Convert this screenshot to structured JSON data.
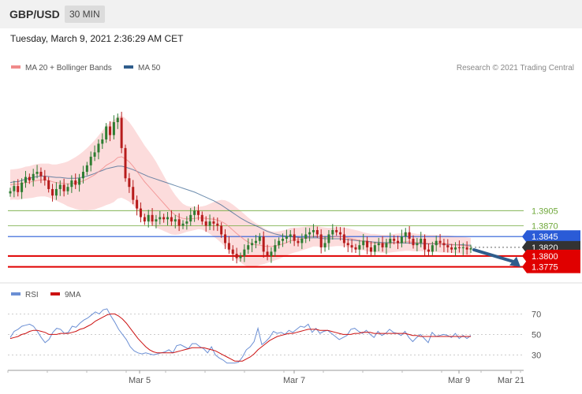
{
  "header": {
    "symbol": "GBP/USD",
    "timeframe": "30 MIN"
  },
  "timestamp": "Tuesday, March 9, 2021 2:36:29 AM CET",
  "legend": {
    "ma20_label": "MA 20 + Bollinger Bands",
    "ma20_color": "#f08a8a",
    "ma50_label": "MA 50",
    "ma50_color": "#2f5d8c"
  },
  "credit": "Research © 2021 Trading Central",
  "rsi_legend": {
    "rsi_label": "RSI",
    "rsi_color": "#6b8fd4",
    "ma_label": "9MA",
    "ma_color": "#cc1111"
  },
  "colors": {
    "bull": "#2e7d32",
    "bear": "#b71c1c",
    "band": "#fcdcdc",
    "resistance": "#6fa83a",
    "pivot": "#2a5bd7",
    "support": "#e00000",
    "current": "#333333",
    "arrow": "#2f5d8c"
  },
  "chart_data": [
    {
      "type": "candlestick",
      "title": "GBP/USD 30 MIN",
      "ylim": [
        1.3745,
        1.4225
      ],
      "x_tick_labels": [
        "Mar 5",
        "Mar 7",
        "Mar 9",
        "Mar 21"
      ],
      "levels": [
        {
          "value": 1.3905,
          "label": "1.3905",
          "kind": "resistance"
        },
        {
          "value": 1.387,
          "label": "1.3870",
          "kind": "resistance"
        },
        {
          "value": 1.3845,
          "label": "1.3845",
          "kind": "pivot"
        },
        {
          "value": 1.382,
          "label": "1.3820",
          "kind": "current"
        },
        {
          "value": 1.38,
          "label": "1.3800",
          "kind": "support"
        },
        {
          "value": 1.3775,
          "label": "1.3775",
          "kind": "support"
        }
      ],
      "forecast_arrow": {
        "from": 1.3818,
        "to": 1.3775
      },
      "closes": [
        1.395,
        1.3962,
        1.3948,
        1.397,
        1.3983,
        1.3975,
        1.399,
        1.3995,
        1.3985,
        1.3975,
        1.3955,
        1.394,
        1.3955,
        1.3965,
        1.395,
        1.396,
        1.3975,
        1.3965,
        1.398,
        1.3995,
        1.401,
        1.403,
        1.404,
        1.406,
        1.407,
        1.41,
        1.408,
        1.411,
        1.412,
        1.405,
        1.398,
        1.396,
        1.393,
        1.391,
        1.389,
        1.388,
        1.3895,
        1.388,
        1.3885,
        1.389,
        1.3885,
        1.389,
        1.388,
        1.3885,
        1.387,
        1.3875,
        1.388,
        1.3895,
        1.3905,
        1.3895,
        1.388,
        1.387,
        1.388,
        1.3875,
        1.387,
        1.385,
        1.383,
        1.3815,
        1.3805,
        1.3795,
        1.38,
        1.3815,
        1.3825,
        1.383,
        1.3835,
        1.3845,
        1.381,
        1.38,
        1.381,
        1.3825,
        1.3835,
        1.384,
        1.3845,
        1.385,
        1.3835,
        1.383,
        1.384,
        1.385,
        1.3855,
        1.386,
        1.385,
        1.382,
        1.383,
        1.385,
        1.386,
        1.3855,
        1.385,
        1.383,
        1.3825,
        1.382,
        1.3815,
        1.3825,
        1.3835,
        1.382,
        1.381,
        1.3825,
        1.383,
        1.382,
        1.383,
        1.384,
        1.3835,
        1.383,
        1.3845,
        1.3855,
        1.384,
        1.3825,
        1.383,
        1.384,
        1.3815,
        1.381,
        1.3825,
        1.3835,
        1.383,
        1.3825,
        1.382,
        1.3815,
        1.382,
        1.3818,
        1.382,
        1.3815,
        1.3818
      ],
      "ma50": [
        1.397,
        1.3972,
        1.3972,
        1.3975,
        1.3978,
        1.398,
        1.3982,
        1.3984,
        1.3985,
        1.3985,
        1.3984,
        1.3983,
        1.3982,
        1.3982,
        1.3981,
        1.398,
        1.398,
        1.398,
        1.3981,
        1.3983,
        1.3985,
        1.3988,
        1.3991,
        1.3995,
        1.3998,
        1.4002,
        1.4004,
        1.4006,
        1.4008,
        1.4008,
        1.4006,
        1.4003,
        1.4,
        1.3996,
        1.3992,
        1.3988,
        1.3984,
        1.3981,
        1.3978,
        1.3975,
        1.3972,
        1.3969,
        1.3966,
        1.3963,
        1.396,
        1.3957,
        1.3954,
        1.3951,
        1.3948,
        1.3944,
        1.394,
        1.3936,
        1.3932,
        1.3928,
        1.3923,
        1.3918,
        1.3912,
        1.3906,
        1.39,
        1.3894,
        1.3888,
        1.3883,
        1.3878,
        1.3874,
        1.387,
        1.3866,
        1.3861,
        1.3857,
        1.3854,
        1.3851,
        1.3849,
        1.3847,
        1.3846,
        1.3845,
        1.3844,
        1.3843,
        1.3842,
        1.3842,
        1.3842,
        1.3842,
        1.3842,
        1.3841,
        1.384,
        1.384,
        1.384,
        1.384,
        1.384,
        1.3839,
        1.3838,
        1.3837,
        1.3836,
        1.3835,
        1.3835,
        1.3834,
        1.3833,
        1.3832,
        1.3832,
        1.3831,
        1.3831,
        1.3831,
        1.3831,
        1.383,
        1.383,
        1.383,
        1.383,
        1.3829,
        1.3829,
        1.3829,
        1.3828,
        1.3828,
        1.3828,
        1.3828,
        1.3828,
        1.3827,
        1.3827,
        1.3826,
        1.3826,
        1.3826,
        1.3826,
        1.3825,
        1.3825
      ],
      "ma20": [
        1.3965,
        1.3966,
        1.3966,
        1.3968,
        1.397,
        1.3971,
        1.3973,
        1.3975,
        1.3976,
        1.3976,
        1.3975,
        1.3972,
        1.397,
        1.3969,
        1.3968,
        1.3967,
        1.3968,
        1.3969,
        1.3971,
        1.3974,
        1.3978,
        1.3983,
        1.3988,
        1.3995,
        1.4002,
        1.401,
        1.4015,
        1.402,
        1.4028,
        1.403,
        1.4025,
        1.4018,
        1.4008,
        1.3996,
        1.3984,
        1.3972,
        1.3962,
        1.3952,
        1.3942,
        1.3932,
        1.3922,
        1.3912,
        1.3902,
        1.3895,
        1.389,
        1.3887,
        1.3886,
        1.3886,
        1.3887,
        1.3888,
        1.3888,
        1.3887,
        1.3886,
        1.3885,
        1.3883,
        1.388,
        1.3875,
        1.3868,
        1.386,
        1.3852,
        1.3845,
        1.3838,
        1.3832,
        1.3828,
        1.3826,
        1.3825,
        1.3823,
        1.3822,
        1.3822,
        1.3823,
        1.3825,
        1.3828,
        1.3831,
        1.3835,
        1.3837,
        1.3838,
        1.384,
        1.3842,
        1.3844,
        1.3846,
        1.3846,
        1.3844,
        1.3843,
        1.3843,
        1.3844,
        1.3845,
        1.3845,
        1.3844,
        1.3842,
        1.384,
        1.3838,
        1.3836,
        1.3834,
        1.3832,
        1.383,
        1.383,
        1.3829,
        1.3828,
        1.3828,
        1.3829,
        1.383,
        1.3831,
        1.3832,
        1.3833,
        1.3833,
        1.3832,
        1.3831,
        1.3831,
        1.383,
        1.3829,
        1.3829,
        1.3829,
        1.3828,
        1.3828,
        1.3828,
        1.3827,
        1.3826,
        1.3825,
        1.3824,
        1.3823,
        1.3822
      ],
      "bb_width": [
        0.0035,
        0.0035,
        0.0036,
        0.0036,
        0.0037,
        0.0037,
        0.0038,
        0.0038,
        0.0038,
        0.0038,
        0.0039,
        0.004,
        0.0042,
        0.0045,
        0.0048,
        0.0052,
        0.0056,
        0.006,
        0.0064,
        0.0068,
        0.0072,
        0.0076,
        0.008,
        0.0084,
        0.0088,
        0.0092,
        0.0094,
        0.0095,
        0.0095,
        0.0095,
        0.0094,
        0.0092,
        0.009,
        0.0088,
        0.0086,
        0.0084,
        0.0082,
        0.008,
        0.0076,
        0.007,
        0.0064,
        0.0058,
        0.0052,
        0.0046,
        0.004,
        0.0034,
        0.003,
        0.0028,
        0.0027,
        0.0026,
        0.0027,
        0.003,
        0.0035,
        0.004,
        0.0045,
        0.005,
        0.0054,
        0.0057,
        0.0059,
        0.006,
        0.006,
        0.0059,
        0.0057,
        0.0054,
        0.005,
        0.0046,
        0.0042,
        0.0038,
        0.0035,
        0.0033,
        0.0032,
        0.0031,
        0.003,
        0.003,
        0.0029,
        0.0028,
        0.0027,
        0.0026,
        0.0025,
        0.0024,
        0.0024,
        0.0023,
        0.0023,
        0.0022,
        0.0022,
        0.0022,
        0.0022,
        0.0022,
        0.0022,
        0.0022,
        0.0022,
        0.0022,
        0.0021,
        0.0021,
        0.0021,
        0.0021,
        0.0021,
        0.0021,
        0.0021,
        0.0021,
        0.0021,
        0.0021,
        0.0021,
        0.0021,
        0.0021,
        0.0021,
        0.002,
        0.002,
        0.002,
        0.002,
        0.002,
        0.002,
        0.002,
        0.002,
        0.002,
        0.002,
        0.002,
        0.002,
        0.002,
        0.002,
        0.002
      ]
    },
    {
      "type": "line",
      "title": "RSI",
      "ylim": [
        18,
        78
      ],
      "y_tick_labels": [
        "70",
        "50",
        "30"
      ],
      "y_ticks": [
        70,
        50,
        30
      ],
      "series": [
        {
          "name": "RSI",
          "values": [
            47,
            53,
            55,
            58,
            59,
            60,
            58,
            53,
            47,
            42,
            45,
            52,
            56,
            55,
            51,
            52,
            58,
            57,
            61,
            64,
            66,
            69,
            72,
            70,
            74,
            75,
            68,
            62,
            55,
            50,
            45,
            38,
            34,
            32,
            31,
            32,
            31,
            30,
            31,
            32,
            33,
            35,
            32,
            39,
            40,
            38,
            36,
            41,
            41,
            38,
            36,
            32,
            38,
            30,
            27,
            25,
            22,
            22,
            22,
            23,
            28,
            35,
            38,
            43,
            56,
            40,
            43,
            47,
            53,
            51,
            52,
            50,
            54,
            52,
            55,
            58,
            57,
            60,
            52,
            56,
            51,
            53,
            54,
            51,
            48,
            45,
            47,
            49,
            55,
            56,
            53,
            51,
            54,
            50,
            47,
            53,
            49,
            51,
            55,
            52,
            51,
            49,
            53,
            47,
            43,
            47,
            50,
            46,
            42,
            52,
            48,
            49,
            50,
            49,
            47,
            51,
            46,
            49,
            46,
            49
          ]
        },
        {
          "name": "9MA",
          "values": [
            46,
            47,
            48,
            50,
            51,
            53,
            54,
            54,
            53,
            52,
            50,
            50,
            50,
            51,
            51,
            51,
            52,
            53,
            55,
            56,
            58,
            60,
            63,
            65,
            67,
            69,
            70,
            70,
            68,
            65,
            61,
            56,
            51,
            46,
            42,
            38,
            35,
            33,
            32,
            32,
            32,
            32,
            32,
            33,
            34,
            35,
            36,
            37,
            37,
            37,
            37,
            36,
            35,
            34,
            32,
            30,
            28,
            26,
            24,
            24,
            24,
            26,
            28,
            31,
            35,
            38,
            41,
            44,
            46,
            48,
            49,
            50,
            51,
            51,
            52,
            53,
            54,
            55,
            55,
            55,
            54,
            54,
            54,
            53,
            52,
            51,
            50,
            50,
            50,
            51,
            51,
            52,
            52,
            52,
            51,
            51,
            51,
            51,
            51,
            51,
            51,
            51,
            51,
            50,
            49,
            49,
            48,
            48,
            48,
            48,
            48,
            48,
            48,
            48,
            48,
            48,
            48,
            48,
            48,
            48
          ]
        }
      ]
    }
  ]
}
